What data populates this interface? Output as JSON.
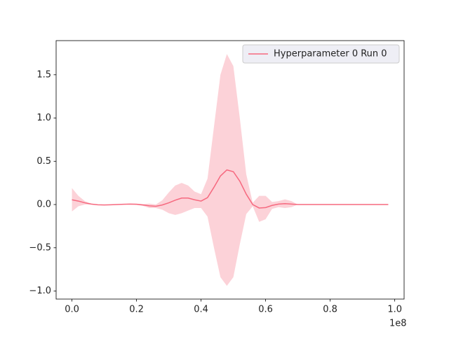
{
  "chart_data": {
    "type": "line",
    "x": [
      0,
      2000000,
      4000000,
      6000000,
      8000000,
      10000000,
      12000000,
      14000000,
      16000000,
      18000000,
      20000000,
      22000000,
      24000000,
      26000000,
      28000000,
      30000000,
      32000000,
      34000000,
      36000000,
      38000000,
      40000000,
      42000000,
      44000000,
      46000000,
      48000000,
      50000000,
      52000000,
      54000000,
      56000000,
      58000000,
      60000000,
      62000000,
      64000000,
      66000000,
      68000000,
      70000000,
      72000000,
      74000000,
      76000000,
      78000000,
      80000000,
      82000000,
      84000000,
      86000000,
      88000000,
      90000000,
      92000000,
      94000000,
      96000000,
      98000000
    ],
    "series": [
      {
        "name": "Hyperparameter 0 Run 0",
        "color": "#f6697f",
        "band_opacity": 0.3,
        "values": [
          0.055,
          0.04,
          0.02,
          0.005,
          -0.003,
          -0.005,
          -0.003,
          0.0,
          0.003,
          0.005,
          0.003,
          -0.005,
          -0.015,
          -0.02,
          -0.005,
          0.02,
          0.05,
          0.075,
          0.075,
          0.055,
          0.04,
          0.08,
          0.2,
          0.33,
          0.4,
          0.38,
          0.27,
          0.12,
          0.0,
          -0.04,
          -0.035,
          -0.01,
          0.005,
          0.01,
          0.005,
          0.0,
          0.0,
          0.0,
          0.0,
          0.0,
          0.0,
          0.0,
          0.0,
          0.0,
          0.0,
          0.0,
          0.0,
          0.0,
          0.0,
          0.0
        ],
        "upper": [
          0.19,
          0.1,
          0.04,
          0.01,
          0.0,
          -0.002,
          0.0,
          0.002,
          0.006,
          0.01,
          0.01,
          0.005,
          0.01,
          0.0,
          0.05,
          0.14,
          0.22,
          0.25,
          0.22,
          0.15,
          0.12,
          0.3,
          0.9,
          1.5,
          1.74,
          1.6,
          1.0,
          0.35,
          0.02,
          0.1,
          0.1,
          0.03,
          0.04,
          0.06,
          0.04,
          0.0,
          0.0,
          0.0,
          0.0,
          0.0,
          0.0,
          0.0,
          0.0,
          0.0,
          0.0,
          0.0,
          0.0,
          0.0,
          0.0,
          0.0
        ],
        "lower": [
          -0.08,
          -0.02,
          0.0,
          0.0,
          -0.006,
          -0.008,
          -0.006,
          -0.002,
          0.0,
          0.0,
          -0.004,
          -0.015,
          -0.04,
          -0.04,
          -0.06,
          -0.1,
          -0.12,
          -0.1,
          -0.07,
          -0.04,
          -0.04,
          -0.14,
          -0.5,
          -0.84,
          -0.94,
          -0.84,
          -0.46,
          -0.11,
          -0.02,
          -0.2,
          -0.17,
          -0.05,
          -0.03,
          -0.04,
          -0.03,
          0.0,
          0.0,
          0.0,
          0.0,
          0.0,
          0.0,
          0.0,
          0.0,
          0.0,
          0.0,
          0.0,
          0.0,
          0.0,
          0.0,
          0.0
        ]
      }
    ],
    "xlim": [
      -4900000,
      102900000
    ],
    "xticks": [
      {
        "value": 0,
        "label": "0.0"
      },
      {
        "value": 20000000,
        "label": "0.2"
      },
      {
        "value": 40000000,
        "label": "0.4"
      },
      {
        "value": 60000000,
        "label": "0.6"
      },
      {
        "value": 80000000,
        "label": "0.8"
      },
      {
        "value": 100000000,
        "label": "1.0"
      }
    ],
    "x_offset_label": "1e8",
    "ylim": [
      -1.093,
      1.895
    ],
    "yticks": [
      {
        "value": -1,
        "label": "−1.0"
      },
      {
        "value": -0.5,
        "label": "−0.5"
      },
      {
        "value": 0,
        "label": "0.0"
      },
      {
        "value": 0.5,
        "label": "0.5"
      },
      {
        "value": 1,
        "label": "1.0"
      },
      {
        "value": 1.5,
        "label": "1.5"
      }
    ],
    "legend": "upper right",
    "grid": false
  }
}
